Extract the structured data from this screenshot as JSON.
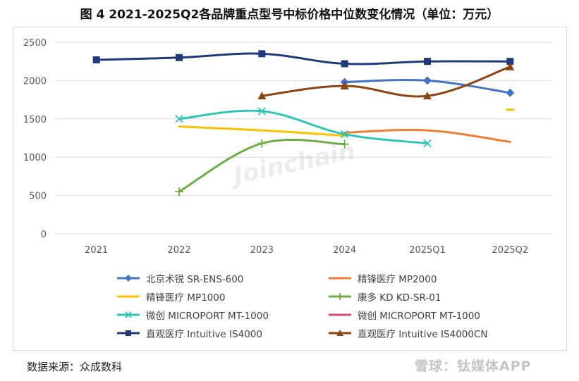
{
  "title": "图 4 2021-2025Q2各品牌重点型号中标价格中位数变化情况（单位：万元）",
  "source": "数据来源：众成数科",
  "watermark_text": "Joinchain",
  "footer_watermark": "雪球：钛媒体APP",
  "chart_data": {
    "type": "line",
    "categories": [
      "2021",
      "2022",
      "2023",
      "2024",
      "2025Q1",
      "2025Q2"
    ],
    "ylim": [
      0,
      2500
    ],
    "yticks": [
      0,
      500,
      1000,
      1500,
      2000,
      2500
    ],
    "grid": true,
    "legend_position": "bottom",
    "series": [
      {
        "name": "北京术锐 SR-ENS-600",
        "color": "#4472C4",
        "marker": "diamond",
        "values": [
          null,
          null,
          null,
          1980,
          2000,
          1840
        ]
      },
      {
        "name": "精锋医疗 MP2000",
        "color": "#ED7D31",
        "marker": "none",
        "values": [
          null,
          null,
          null,
          1320,
          1350,
          1200
        ]
      },
      {
        "name": "精锋医疗 MP1000",
        "color": "#FFC000",
        "marker": "none",
        "values": [
          null,
          1400,
          1350,
          1280,
          null,
          1620
        ]
      },
      {
        "name": "康多 KD KD-SR-01",
        "color": "#70AD47",
        "marker": "plus",
        "values": [
          null,
          550,
          1180,
          1170,
          null,
          null
        ]
      },
      {
        "name": "微创 MICROPORT MT-1000",
        "color": "#2EC4B6",
        "marker": "x",
        "values": [
          null,
          1500,
          1600,
          1300,
          1180,
          null
        ]
      },
      {
        "name": "微创 MICROPORT MT-1000",
        "color": "#E0457B",
        "marker": "none",
        "values": [
          null,
          null,
          null,
          null,
          null,
          null
        ]
      },
      {
        "name": "直观医疗 Intuitive IS4000",
        "color": "#1F3A7A",
        "marker": "square",
        "values": [
          2270,
          2300,
          2350,
          2220,
          2250,
          2250
        ]
      },
      {
        "name": "直观医疗 Intuitive IS4000CN",
        "color": "#8B4513",
        "marker": "triangle",
        "values": [
          null,
          null,
          1800,
          1930,
          1800,
          2180
        ]
      }
    ]
  }
}
